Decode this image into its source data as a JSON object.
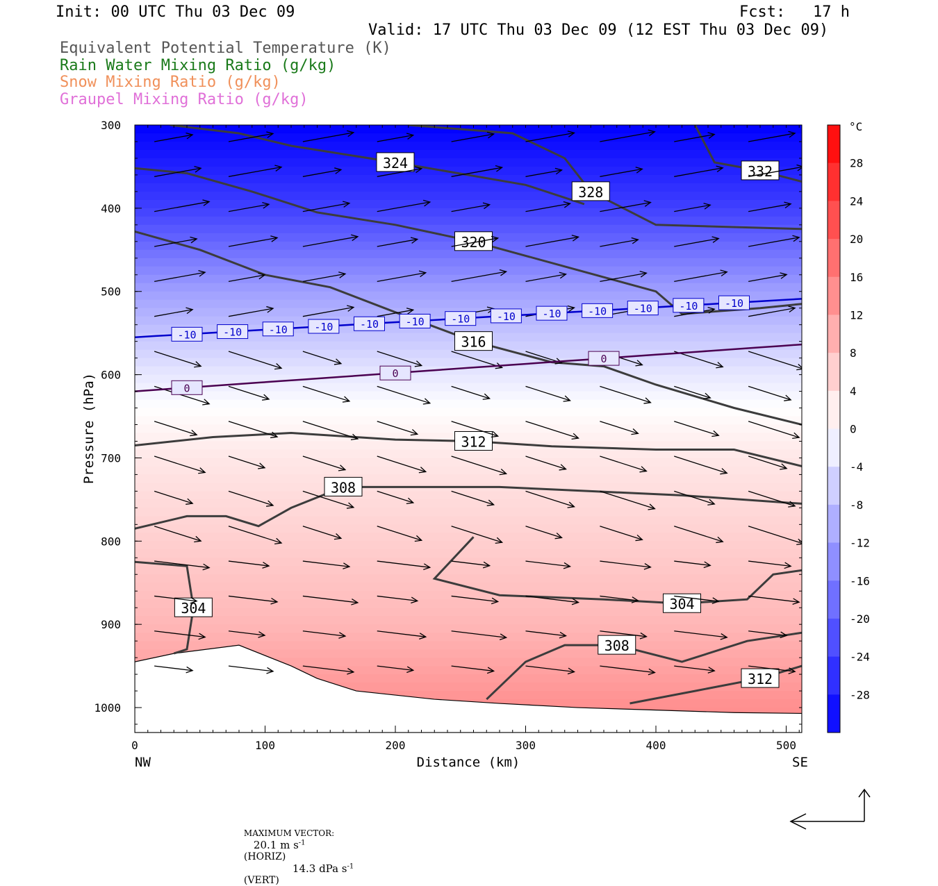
{
  "header": {
    "init": "Init: 00 UTC Thu 03 Dec 09",
    "fcst": "Fcst:   17 h",
    "valid": "Valid: 17 UTC Thu 03 Dec 09 (12 EST Thu 03 Dec 09)",
    "legend": [
      {
        "text": "Equivalent Potential Temperature (K)",
        "color": "#555555"
      },
      {
        "text": "Rain Water Mixing Ratio (g/kg)",
        "color": "#1a7a1a"
      },
      {
        "text": "Snow Mixing Ratio (g/kg)",
        "color": "#f0905a"
      },
      {
        "text": "Graupel Mixing Ratio (g/kg)",
        "color": "#e070d8"
      }
    ]
  },
  "chart_data": {
    "type": "cross-section",
    "xlabel": "Distance (km)",
    "ylabel": "Pressure (hPa)",
    "xlim": [
      0,
      512
    ],
    "ylim": [
      1030,
      300
    ],
    "x_ticks": [
      "0",
      "100",
      "200",
      "300",
      "400",
      "500"
    ],
    "y_ticks": [
      "300",
      "400",
      "500",
      "600",
      "700",
      "800",
      "900",
      "1000"
    ],
    "x_end_labels": {
      "left": "NW",
      "right": "SE"
    },
    "colorbar": {
      "unit": "°C",
      "range": [
        -32,
        32
      ],
      "tick_labels": [
        "28",
        "24",
        "20",
        "16",
        "12",
        "8",
        "4",
        "0",
        "-4",
        "-8",
        "-12",
        "-16",
        "-20",
        "-24",
        "-28"
      ],
      "tick_values": [
        28,
        24,
        20,
        16,
        12,
        8,
        4,
        0,
        -4,
        -8,
        -12,
        -16,
        -20,
        -24,
        -28
      ],
      "cold_color": "#0000ff",
      "warm_color": "#ff0000"
    },
    "temperature_field_samples": [
      {
        "p": 300,
        "t": -32
      },
      {
        "p": 400,
        "t": -24
      },
      {
        "p": 500,
        "t": -12
      },
      {
        "p": 600,
        "t": -3
      },
      {
        "p": 640,
        "t": 0
      },
      {
        "p": 700,
        "t": 3
      },
      {
        "p": 800,
        "t": 6
      },
      {
        "p": 900,
        "t": 9
      },
      {
        "p": 1000,
        "t": 14
      }
    ],
    "theta_e_contours": [
      {
        "label": "324",
        "points": [
          [
            27,
            300
          ],
          [
            80,
            310
          ],
          [
            120,
            325
          ],
          [
            200,
            345
          ],
          [
            300,
            372
          ],
          [
            345,
            395
          ]
        ]
      },
      {
        "label": "328",
        "points": [
          [
            210,
            300
          ],
          [
            290,
            310
          ],
          [
            330,
            340
          ],
          [
            350,
            380
          ],
          [
            400,
            420
          ],
          [
            512,
            425
          ]
        ]
      },
      {
        "label": "332",
        "points": [
          [
            430,
            300
          ],
          [
            445,
            345
          ],
          [
            480,
            355
          ],
          [
            512,
            368
          ]
        ]
      },
      {
        "label": "320",
        "points": [
          [
            0,
            352
          ],
          [
            40,
            358
          ],
          [
            90,
            380
          ],
          [
            140,
            405
          ],
          [
            200,
            420
          ],
          [
            260,
            440
          ],
          [
            330,
            470
          ],
          [
            400,
            500
          ],
          [
            420,
            527
          ],
          [
            480,
            520
          ],
          [
            512,
            515
          ]
        ]
      },
      {
        "label": "316",
        "points": [
          [
            0,
            428
          ],
          [
            50,
            450
          ],
          [
            100,
            480
          ],
          [
            150,
            495
          ],
          [
            200,
            525
          ],
          [
            260,
            560
          ],
          [
            320,
            585
          ],
          [
            360,
            590
          ],
          [
            400,
            612
          ],
          [
            460,
            640
          ],
          [
            512,
            660
          ]
        ]
      },
      {
        "label": "312",
        "points": [
          [
            0,
            685
          ],
          [
            60,
            675
          ],
          [
            120,
            670
          ],
          [
            200,
            678
          ],
          [
            260,
            680
          ],
          [
            320,
            686
          ],
          [
            400,
            690
          ],
          [
            460,
            690
          ],
          [
            512,
            710
          ]
        ]
      },
      {
        "label": "308",
        "points": [
          [
            0,
            785
          ],
          [
            40,
            770
          ],
          [
            70,
            770
          ],
          [
            95,
            782
          ],
          [
            120,
            760
          ],
          [
            160,
            735
          ],
          [
            220,
            735
          ],
          [
            280,
            735
          ],
          [
            350,
            740
          ],
          [
            420,
            745
          ],
          [
            512,
            755
          ]
        ]
      },
      {
        "label": "304",
        "points": [
          [
            0,
            825
          ],
          [
            40,
            830
          ],
          [
            45,
            880
          ],
          [
            40,
            930
          ],
          [
            30,
            935
          ]
        ]
      },
      {
        "label": "304b",
        "points": [
          [
            260,
            795
          ],
          [
            230,
            845
          ],
          [
            280,
            865
          ],
          [
            360,
            870
          ],
          [
            420,
            875
          ],
          [
            470,
            870
          ],
          [
            490,
            840
          ],
          [
            512,
            835
          ]
        ]
      },
      {
        "label": "308b",
        "points": [
          [
            270,
            990
          ],
          [
            300,
            945
          ],
          [
            330,
            925
          ],
          [
            370,
            925
          ],
          [
            420,
            945
          ],
          [
            470,
            920
          ],
          [
            512,
            910
          ]
        ]
      },
      {
        "label": "312b",
        "points": [
          [
            380,
            995
          ],
          [
            430,
            980
          ],
          [
            480,
            965
          ],
          [
            512,
            950
          ]
        ]
      }
    ],
    "isotherm_labels": [
      {
        "label": "-10",
        "p": 555
      },
      {
        "label": "0",
        "p": 620
      }
    ],
    "vector_scale": {
      "label": "MAXIMUM VECTOR:",
      "horiz": "20.1 m s",
      "horiz_unit": "(HORIZ)",
      "vert": "14.3 dPa s",
      "vert_unit": "(VERT)",
      "exponent": "-1"
    }
  }
}
